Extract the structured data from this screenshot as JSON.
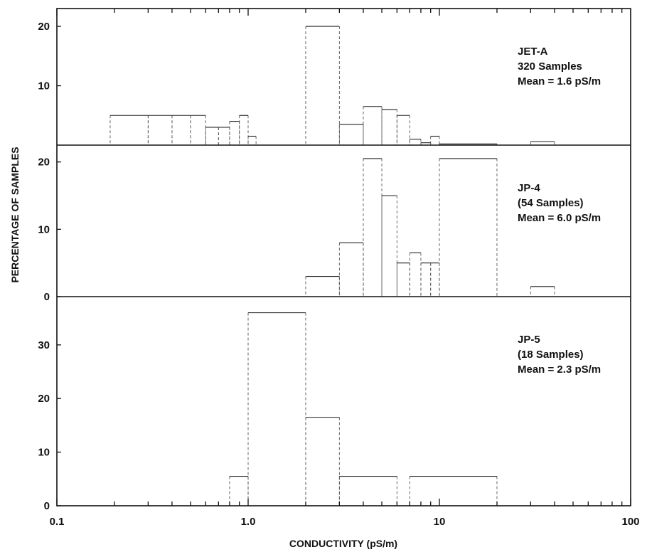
{
  "chart_data": {
    "type": "bar",
    "xlabel": "CONDUCTIVITY (pS/m)",
    "ylabel": "PERCENTAGE OF SAMPLES",
    "x_scale": "log",
    "xlim": [
      0.1,
      100
    ],
    "x_ticks": [
      {
        "value": 0.1,
        "label": "0.1"
      },
      {
        "value": 1,
        "label": "1.0"
      },
      {
        "value": 10,
        "label": "10"
      },
      {
        "value": 100,
        "label": "100"
      }
    ],
    "panels": [
      {
        "name": "JET-A",
        "annotation": [
          "JET-A",
          "320 Samples",
          "Mean = 1.6 pS/m"
        ],
        "ylim": [
          0,
          23
        ],
        "y_ticks": [
          {
            "value": 10,
            "label": "10"
          },
          {
            "value": 20,
            "label": "20"
          }
        ],
        "bins": [
          {
            "x0": 0.19,
            "x1": 0.3,
            "y": 5
          },
          {
            "x0": 0.3,
            "x1": 0.4,
            "y": 5
          },
          {
            "x0": 0.4,
            "x1": 0.5,
            "y": 5
          },
          {
            "x0": 0.5,
            "x1": 0.6,
            "y": 5
          },
          {
            "x0": 0.6,
            "x1": 0.7,
            "y": 3
          },
          {
            "x0": 0.7,
            "x1": 0.8,
            "y": 3
          },
          {
            "x0": 0.8,
            "x1": 0.9,
            "y": 4
          },
          {
            "x0": 0.9,
            "x1": 1.0,
            "y": 5
          },
          {
            "x0": 1.0,
            "x1": 1.1,
            "y": 1.5
          },
          {
            "x0": 2.0,
            "x1": 3.0,
            "y": 20
          },
          {
            "x0": 3.0,
            "x1": 4.0,
            "y": 3.5
          },
          {
            "x0": 4.0,
            "x1": 5.0,
            "y": 6.5
          },
          {
            "x0": 5.0,
            "x1": 6.0,
            "y": 6
          },
          {
            "x0": 6.0,
            "x1": 7.0,
            "y": 5
          },
          {
            "x0": 7.0,
            "x1": 8.0,
            "y": 1
          },
          {
            "x0": 8.0,
            "x1": 9.0,
            "y": 0.4
          },
          {
            "x0": 9.0,
            "x1": 10.0,
            "y": 1.5
          },
          {
            "x0": 10.0,
            "x1": 20.0,
            "y": 0.2
          },
          {
            "x0": 30.0,
            "x1": 40.0,
            "y": 0.6
          }
        ]
      },
      {
        "name": "JP-4",
        "annotation": [
          "JP-4",
          "(54 Samples)",
          "Mean = 6.0 pS/m"
        ],
        "ylim": [
          0,
          22.5
        ],
        "y_ticks": [
          {
            "value": 0,
            "label": "0"
          },
          {
            "value": 10,
            "label": "10"
          },
          {
            "value": 20,
            "label": "20"
          }
        ],
        "bins": [
          {
            "x0": 2.0,
            "x1": 3.0,
            "y": 3
          },
          {
            "x0": 3.0,
            "x1": 4.0,
            "y": 8
          },
          {
            "x0": 4.0,
            "x1": 5.0,
            "y": 20.5
          },
          {
            "x0": 5.0,
            "x1": 6.0,
            "y": 15
          },
          {
            "x0": 6.0,
            "x1": 7.0,
            "y": 5
          },
          {
            "x0": 7.0,
            "x1": 8.0,
            "y": 6.5
          },
          {
            "x0": 8.0,
            "x1": 9.0,
            "y": 5
          },
          {
            "x0": 9.0,
            "x1": 10.0,
            "y": 5
          },
          {
            "x0": 10.0,
            "x1": 20.0,
            "y": 20.5
          },
          {
            "x0": 30.0,
            "x1": 40.0,
            "y": 1.5
          }
        ]
      },
      {
        "name": "JP-5",
        "annotation": [
          "JP-5",
          "(18 Samples)",
          "Mean = 2.3 pS/m"
        ],
        "ylim": [
          0,
          39
        ],
        "y_ticks": [
          {
            "value": 0,
            "label": "0"
          },
          {
            "value": 10,
            "label": "10"
          },
          {
            "value": 20,
            "label": "20"
          },
          {
            "value": 30,
            "label": "30"
          }
        ],
        "bins": [
          {
            "x0": 0.8,
            "x1": 1.0,
            "y": 5.5
          },
          {
            "x0": 1.0,
            "x1": 2.0,
            "y": 36
          },
          {
            "x0": 2.0,
            "x1": 3.0,
            "y": 16.5
          },
          {
            "x0": 3.0,
            "x1": 6.0,
            "y": 5.5
          },
          {
            "x0": 7.0,
            "x1": 20.0,
            "y": 5.5
          }
        ]
      }
    ]
  }
}
